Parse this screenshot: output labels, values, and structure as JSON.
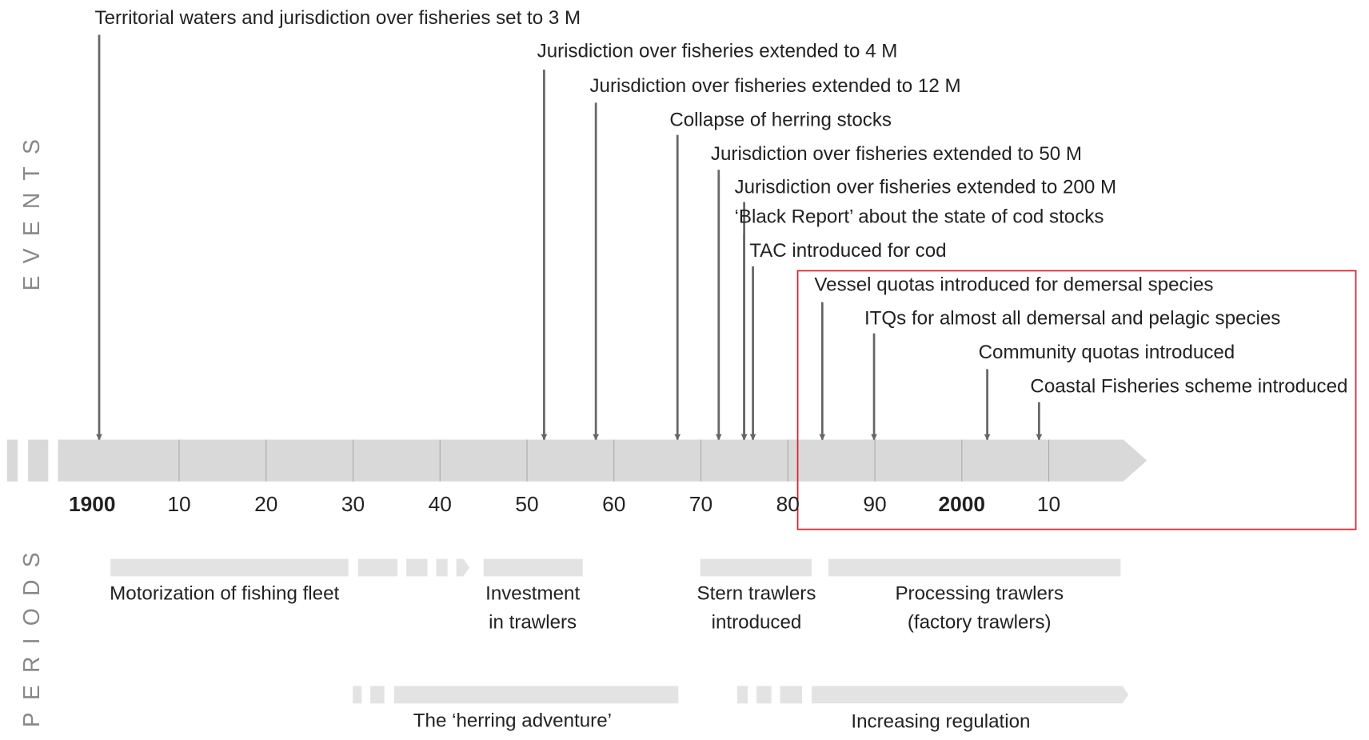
{
  "side_labels": {
    "events": "EVENTS",
    "periods": "PERIODS"
  },
  "events": [
    "Territorial waters and jurisdiction over fisheries set to 3 M",
    "Jurisdiction over fisheries extended to 4 M",
    "Jurisdiction over fisheries extended to 12 M",
    "Collapse of herring stocks",
    "Jurisdiction over fisheries extended to 50 M",
    "Jurisdiction over fisheries extended to 200 M",
    "‘Black Report’ about the state of cod stocks",
    "TAC introduced for cod",
    "Vessel quotas introduced for demersal species",
    "ITQs for almost all demersal and pelagic species",
    "Community quotas introduced",
    "Coastal Fisheries scheme introduced"
  ],
  "timeline_labels": [
    "1900",
    "10",
    "20",
    "30",
    "40",
    "50",
    "60",
    "70",
    "80",
    "90",
    "2000",
    "10"
  ],
  "periods": [
    [
      "Motorization of fishing fleet"
    ],
    [
      "Investment",
      "in trawlers"
    ],
    [
      "Stern trawlers",
      "introduced"
    ],
    [
      "Processing trawlers",
      "(factory trawlers)"
    ],
    [
      "The ‘herring adventure’"
    ],
    [
      "Increasing regulation"
    ]
  ]
}
